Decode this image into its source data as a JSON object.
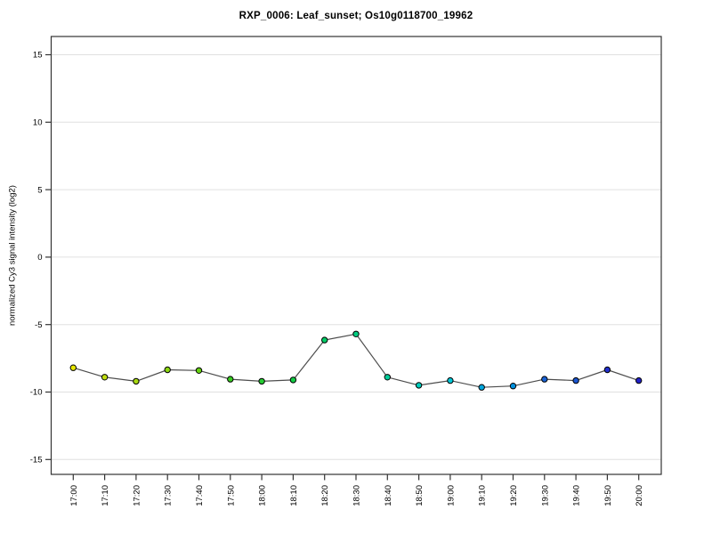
{
  "figure": {
    "background": "#ffffff"
  },
  "chart_data": {
    "type": "line",
    "title": "RXP_0006: Leaf_sunset; Os10g0118700_19962",
    "xlabel": "",
    "ylabel": "normalized Cy3 signal intensity (log2)",
    "ylim": [
      -16.1,
      16.35
    ],
    "yticks": [
      15,
      10,
      5,
      0,
      -5,
      -10,
      -15
    ],
    "grid": "horizontal-only",
    "legend": "none",
    "categories": [
      "17:00",
      "17:10",
      "17:20",
      "17:30",
      "17:40",
      "17:50",
      "18:00",
      "18:10",
      "18:20",
      "18:30",
      "18:40",
      "18:50",
      "19:00",
      "19:10",
      "19:20",
      "19:30",
      "19:40",
      "19:50",
      "20:00"
    ],
    "series": [
      {
        "name": "normalized Cy3 signal intensity",
        "values": [
          -8.2,
          -8.9,
          -9.2,
          -8.35,
          -8.4,
          -9.05,
          -9.2,
          -9.1,
          -6.15,
          -5.7,
          -8.9,
          -9.5,
          -9.15,
          -9.65,
          -9.55,
          -9.05,
          -9.15,
          -8.35,
          -9.15
        ],
        "line_color": "#4d4d4d",
        "point_colors": [
          "#e8e800",
          "#bfdd11",
          "#a8d911",
          "#8cd611",
          "#66d211",
          "#39cc22",
          "#26cc33",
          "#13cc44",
          "#00cc66",
          "#00cc80",
          "#00cc99",
          "#00ccbb",
          "#00c6d6",
          "#00a6dd",
          "#0090dd",
          "#1a63d6",
          "#1a55d0",
          "#2230cc",
          "#2222c8"
        ]
      }
    ],
    "colors": {
      "axis": "#333333",
      "gridline": "#e0e0e0",
      "point_border": "#000000",
      "text": "#000000"
    }
  }
}
